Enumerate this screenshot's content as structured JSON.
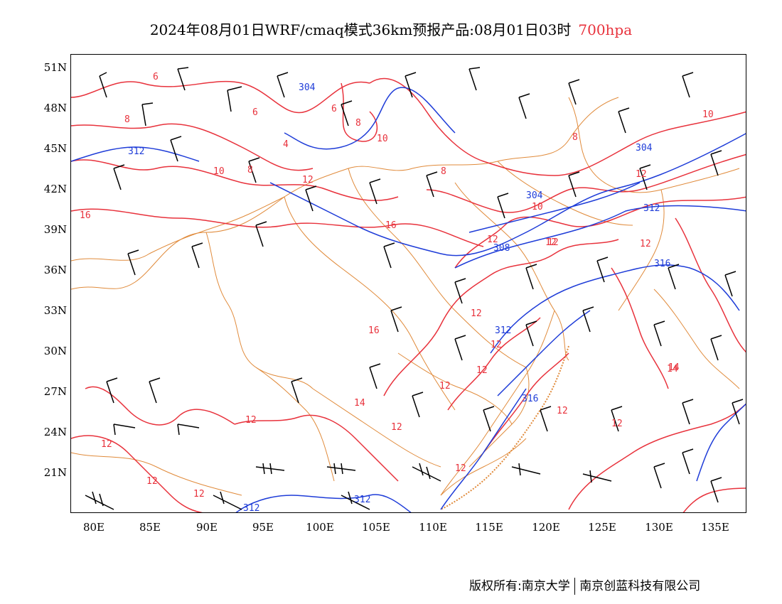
{
  "title": {
    "main": "2024年08月01日WRF/cmaq模式36km预报产品:08月01日03时",
    "level": "700hpa"
  },
  "colors": {
    "temperature_contour": "#e8323c",
    "height_contour": "#1e3cd8",
    "border": "#e08a3a",
    "wind_barb": "#000000"
  },
  "axes": {
    "y_ticks": [
      "51N",
      "48N",
      "45N",
      "42N",
      "39N",
      "36N",
      "33N",
      "30N",
      "27N",
      "24N",
      "21N"
    ],
    "x_ticks": [
      "80E",
      "85E",
      "90E",
      "95E",
      "100E",
      "105E",
      "110E",
      "115E",
      "120E",
      "125E",
      "130E",
      "135E"
    ]
  },
  "contour_labels": {
    "temperature": [
      "8",
      "8",
      "6",
      "6",
      "8",
      "4",
      "6",
      "10",
      "8",
      "8",
      "10",
      "12",
      "10",
      "12",
      "16",
      "16",
      "12",
      "10",
      "12",
      "14",
      "14",
      "12",
      "16",
      "12",
      "12",
      "12",
      "14",
      "12",
      "12",
      "12",
      "12",
      "12",
      "12",
      "12",
      "12",
      "12",
      "12"
    ],
    "height": [
      "304",
      "312",
      "304",
      "304",
      "312",
      "308",
      "316",
      "312",
      "316",
      "312",
      "312"
    ]
  },
  "footer": {
    "left": "版权所有:南京大学",
    "right": "南京创蓝科技有限公司"
  }
}
